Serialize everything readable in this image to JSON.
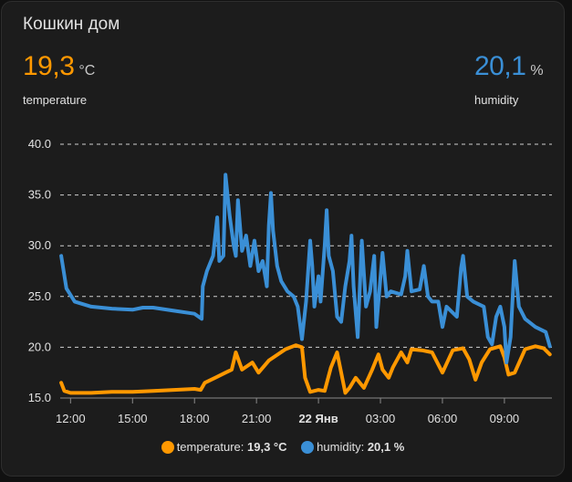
{
  "card": {
    "title": "Кошкин дом"
  },
  "stats": {
    "temperature": {
      "value": "19,3",
      "unit": "°C",
      "label": "temperature"
    },
    "humidity": {
      "value": "20,1",
      "unit": "%",
      "label": "humidity"
    }
  },
  "colors": {
    "temperature": "#ff9800",
    "humidity": "#3a8fd6"
  },
  "chart_data": {
    "type": "line",
    "title": "",
    "xlabel": "",
    "ylabel": "",
    "ylim": [
      15,
      40
    ],
    "yticks": [
      "15.0",
      "20.0",
      "25.0",
      "30.0",
      "35.0",
      "40.0"
    ],
    "xlim": [
      11.5,
      35.3
    ],
    "xticks": [
      {
        "h": 12,
        "label": "12:00",
        "bold": false
      },
      {
        "h": 15,
        "label": "15:00",
        "bold": false
      },
      {
        "h": 18,
        "label": "18:00",
        "bold": false
      },
      {
        "h": 21,
        "label": "21:00",
        "bold": false
      },
      {
        "h": 24,
        "label": "22 Янв",
        "bold": true
      },
      {
        "h": 27,
        "label": "03:00",
        "bold": false
      },
      {
        "h": 30,
        "label": "06:00",
        "bold": false
      },
      {
        "h": 33,
        "label": "09:00",
        "bold": false
      }
    ],
    "grid": true,
    "series": [
      {
        "name": "temperature",
        "label": "temperature:",
        "current": "19,3 °C",
        "points": [
          [
            11.55,
            16.5
          ],
          [
            11.7,
            15.7
          ],
          [
            12,
            15.5
          ],
          [
            13,
            15.5
          ],
          [
            14,
            15.6
          ],
          [
            15,
            15.6
          ],
          [
            16,
            15.7
          ],
          [
            17,
            15.8
          ],
          [
            18,
            15.9
          ],
          [
            18.3,
            15.8
          ],
          [
            18.5,
            16.5
          ],
          [
            19,
            17.0
          ],
          [
            19.5,
            17.5
          ],
          [
            19.8,
            17.8
          ],
          [
            20.0,
            19.5
          ],
          [
            20.3,
            17.8
          ],
          [
            20.8,
            18.5
          ],
          [
            21.1,
            17.5
          ],
          [
            21.6,
            18.7
          ],
          [
            22.4,
            19.8
          ],
          [
            22.9,
            20.2
          ],
          [
            23.2,
            20.0
          ],
          [
            23.35,
            17.0
          ],
          [
            23.6,
            15.6
          ],
          [
            24.0,
            15.8
          ],
          [
            24.3,
            15.7
          ],
          [
            24.6,
            18.0
          ],
          [
            24.9,
            19.5
          ],
          [
            25.1,
            17.5
          ],
          [
            25.3,
            15.5
          ],
          [
            25.5,
            16.0
          ],
          [
            25.8,
            17.0
          ],
          [
            26.2,
            16.0
          ],
          [
            26.6,
            17.8
          ],
          [
            26.9,
            19.3
          ],
          [
            27.1,
            17.8
          ],
          [
            27.4,
            17.0
          ],
          [
            27.6,
            18.0
          ],
          [
            28.0,
            19.5
          ],
          [
            28.3,
            18.5
          ],
          [
            28.5,
            19.8
          ],
          [
            29.0,
            19.7
          ],
          [
            29.5,
            19.5
          ],
          [
            30.0,
            17.5
          ],
          [
            30.5,
            19.7
          ],
          [
            31.0,
            19.9
          ],
          [
            31.3,
            18.8
          ],
          [
            31.6,
            16.8
          ],
          [
            31.9,
            18.5
          ],
          [
            32.3,
            19.8
          ],
          [
            32.8,
            20.1
          ],
          [
            33.0,
            19.0
          ],
          [
            33.2,
            17.3
          ],
          [
            33.5,
            17.5
          ],
          [
            34.0,
            19.8
          ],
          [
            34.5,
            20.1
          ],
          [
            34.9,
            19.9
          ],
          [
            35.2,
            19.3
          ]
        ]
      },
      {
        "name": "humidity",
        "label": "humidity:",
        "current": "20,1 %",
        "points": [
          [
            11.55,
            29.0
          ],
          [
            11.8,
            25.8
          ],
          [
            12.2,
            24.5
          ],
          [
            13,
            24.0
          ],
          [
            14,
            23.8
          ],
          [
            15,
            23.7
          ],
          [
            15.5,
            23.9
          ],
          [
            16,
            23.9
          ],
          [
            17,
            23.6
          ],
          [
            18,
            23.3
          ],
          [
            18.35,
            22.8
          ],
          [
            18.4,
            26.0
          ],
          [
            18.6,
            27.5
          ],
          [
            18.9,
            29.0
          ],
          [
            19.1,
            32.8
          ],
          [
            19.2,
            28.5
          ],
          [
            19.4,
            29.0
          ],
          [
            19.5,
            37.0
          ],
          [
            19.7,
            33.0
          ],
          [
            19.9,
            30.0
          ],
          [
            20.0,
            29.0
          ],
          [
            20.1,
            34.5
          ],
          [
            20.3,
            29.5
          ],
          [
            20.5,
            31.0
          ],
          [
            20.7,
            28.0
          ],
          [
            20.9,
            30.5
          ],
          [
            21.1,
            27.5
          ],
          [
            21.3,
            28.5
          ],
          [
            21.5,
            26.0
          ],
          [
            21.6,
            32.0
          ],
          [
            21.7,
            35.2
          ],
          [
            21.8,
            31.5
          ],
          [
            22.0,
            28.0
          ],
          [
            22.2,
            26.5
          ],
          [
            22.5,
            25.5
          ],
          [
            22.8,
            25.0
          ],
          [
            23.0,
            24.0
          ],
          [
            23.2,
            20.8
          ],
          [
            23.4,
            24.5
          ],
          [
            23.6,
            30.5
          ],
          [
            23.7,
            28.0
          ],
          [
            23.8,
            24.0
          ],
          [
            24.0,
            27.0
          ],
          [
            24.1,
            24.5
          ],
          [
            24.3,
            30.0
          ],
          [
            24.4,
            33.5
          ],
          [
            24.5,
            29.0
          ],
          [
            24.7,
            27.5
          ],
          [
            24.9,
            23.0
          ],
          [
            25.1,
            22.5
          ],
          [
            25.3,
            26.0
          ],
          [
            25.5,
            28.5
          ],
          [
            25.6,
            31.0
          ],
          [
            25.7,
            26.0
          ],
          [
            25.9,
            21.0
          ],
          [
            26.1,
            30.5
          ],
          [
            26.3,
            24.0
          ],
          [
            26.5,
            25.5
          ],
          [
            26.7,
            29.0
          ],
          [
            26.8,
            22.0
          ],
          [
            27.1,
            29.3
          ],
          [
            27.3,
            25.0
          ],
          [
            27.5,
            25.5
          ],
          [
            28.0,
            25.2
          ],
          [
            28.2,
            27.0
          ],
          [
            28.3,
            29.5
          ],
          [
            28.5,
            25.5
          ],
          [
            28.9,
            25.7
          ],
          [
            29.1,
            28.0
          ],
          [
            29.3,
            25.0
          ],
          [
            29.5,
            24.5
          ],
          [
            29.8,
            24.5
          ],
          [
            30.0,
            22.0
          ],
          [
            30.2,
            24.0
          ],
          [
            30.7,
            23.0
          ],
          [
            30.9,
            27.8
          ],
          [
            31.0,
            29.0
          ],
          [
            31.2,
            25.0
          ],
          [
            31.5,
            24.5
          ],
          [
            32.0,
            24.0
          ],
          [
            32.2,
            21.0
          ],
          [
            32.4,
            20.3
          ],
          [
            32.6,
            23.0
          ],
          [
            32.8,
            24.0
          ],
          [
            33.0,
            22.0
          ],
          [
            33.1,
            18.5
          ],
          [
            33.3,
            21.0
          ],
          [
            33.4,
            25.0
          ],
          [
            33.5,
            28.5
          ],
          [
            33.7,
            24.0
          ],
          [
            34.0,
            22.8
          ],
          [
            34.5,
            22.0
          ],
          [
            35.0,
            21.5
          ],
          [
            35.2,
            20.1
          ]
        ]
      }
    ]
  }
}
